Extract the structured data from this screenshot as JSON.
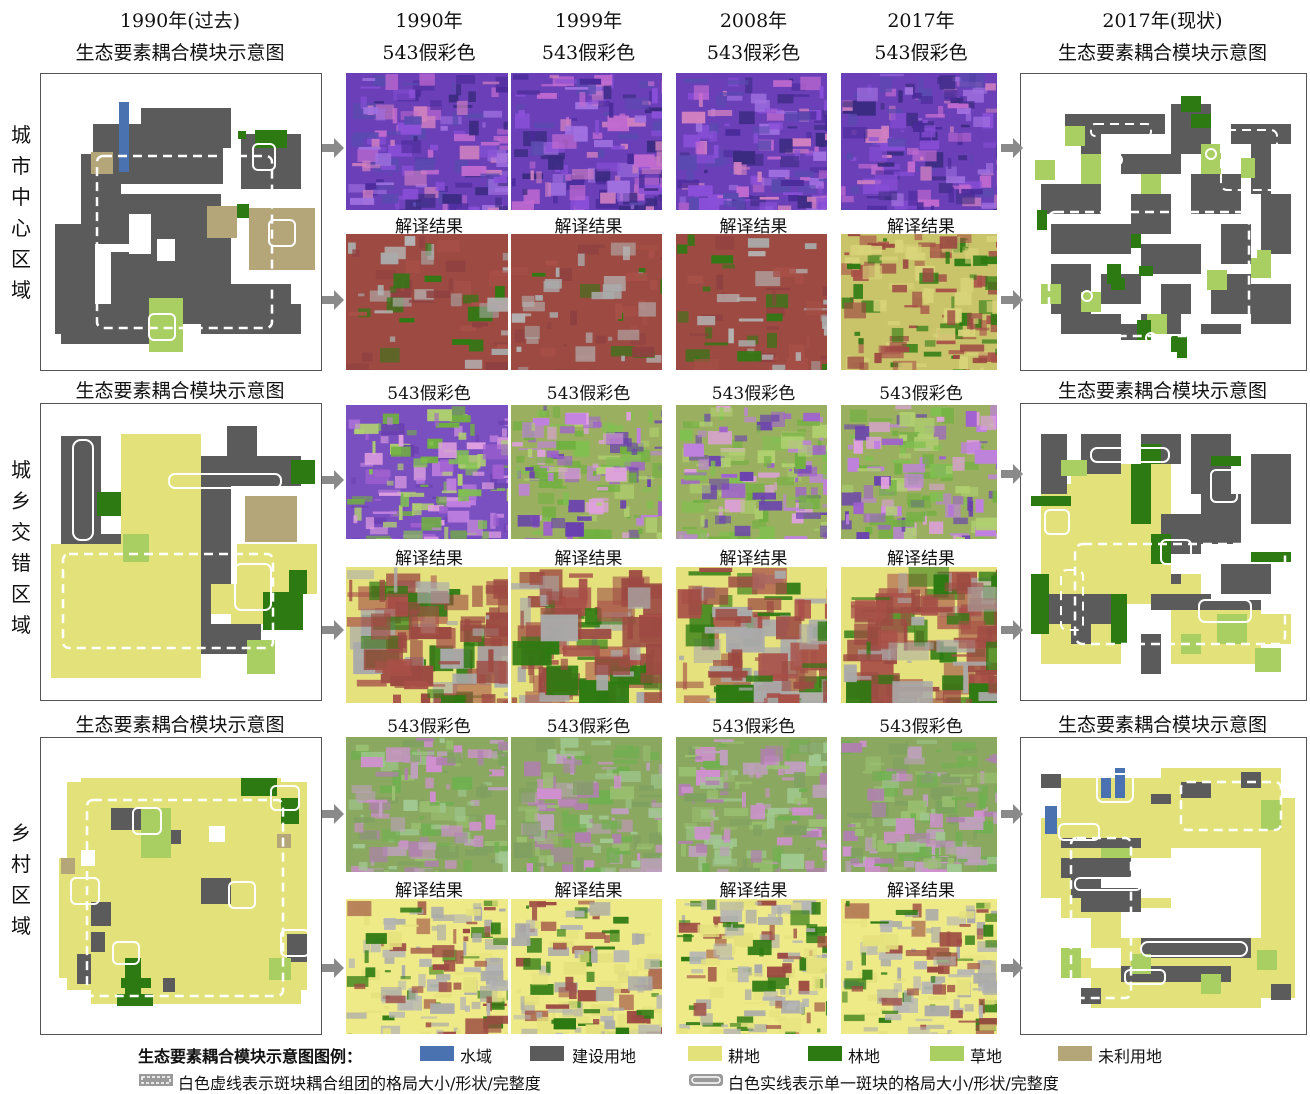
{
  "headers": {
    "left_top": [
      "1990年(过去)",
      "生态要素耦合模块示意图"
    ],
    "years": [
      "1990年",
      "1999年",
      "2008年",
      "2017年"
    ],
    "false_color": "543假彩色",
    "right_top": [
      "2017年(现状)",
      "生态要素耦合模块示意图"
    ]
  },
  "schematic_title": "生态要素耦合模块示意图",
  "interpretation_label": "解译结果",
  "false_color_label": "543假彩色",
  "rows": [
    {
      "label": "城市中心区域"
    },
    {
      "label": "城乡交错区域"
    },
    {
      "label": "乡村区域"
    }
  ],
  "legend": {
    "title": "生态要素耦合模块示意图图例：",
    "items": [
      {
        "name": "水域",
        "color": "#4a72b0"
      },
      {
        "name": "建设用地",
        "color": "#5b5b5b"
      },
      {
        "name": "耕地",
        "color": "#e3e27a"
      },
      {
        "name": "林地",
        "color": "#2e7a12"
      },
      {
        "name": "草地",
        "color": "#a9cf62"
      },
      {
        "name": "未利用地",
        "color": "#b5a67a"
      }
    ],
    "dashed_note": "白色虚线表示斑块耦合组团的格局大小/形状/完整度",
    "solid_note": "白色实线表示单一斑块的格局大小/形状/完整度"
  }
}
